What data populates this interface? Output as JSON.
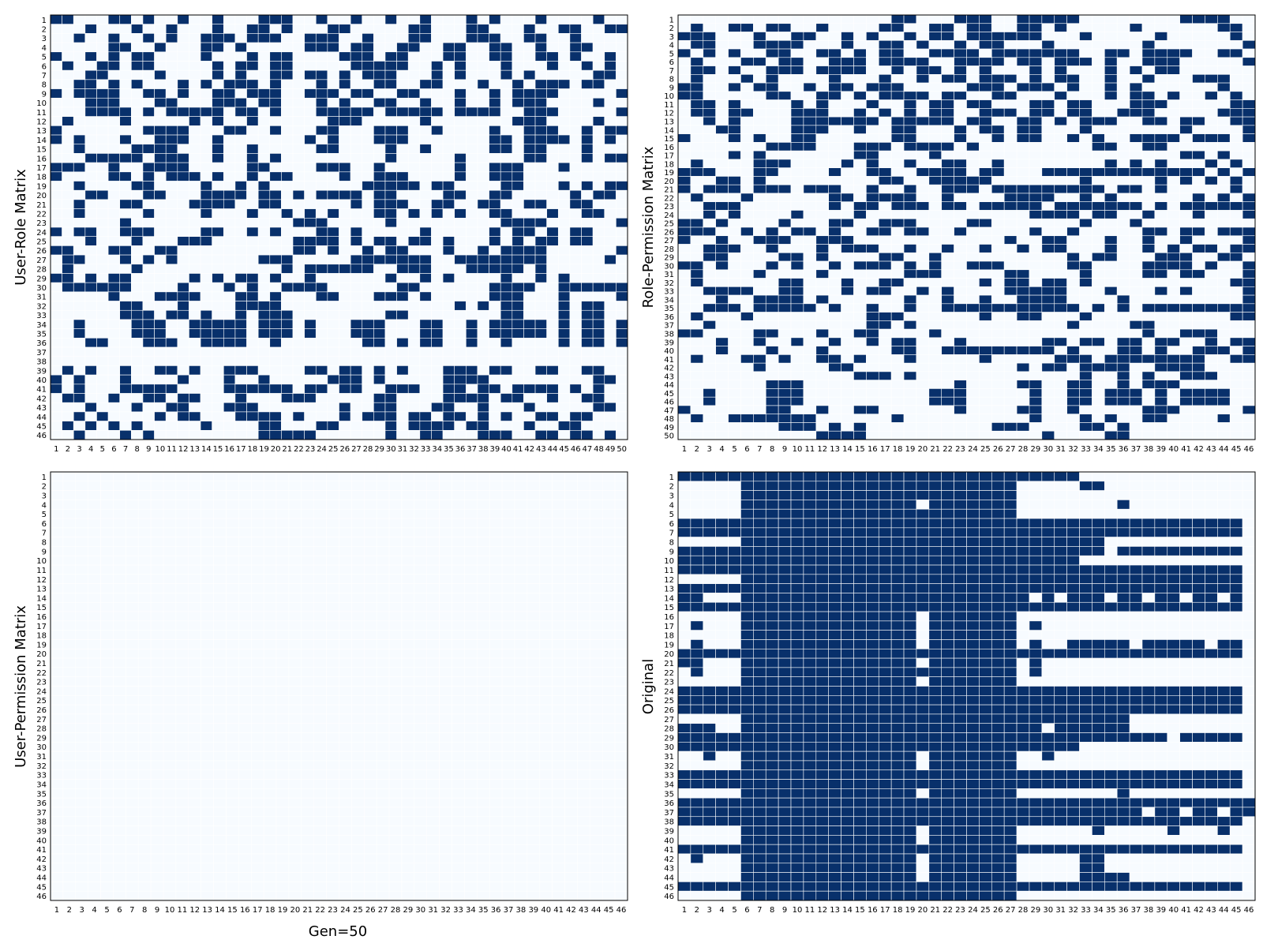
{
  "figure": {
    "footer_label": "Gen=50"
  },
  "colors": {
    "filled": "#08306b",
    "empty": "#f7fbff",
    "grid": "#ffffff",
    "frame": "#000000"
  },
  "chart_data": [
    {
      "type": "heatmap",
      "ylabel": "User-Role Matrix",
      "rows": 46,
      "cols": 50,
      "yticks": [
        "1",
        "2",
        "3",
        "4",
        "5",
        "6",
        "7",
        "8",
        "9",
        "10",
        "11",
        "12",
        "13",
        "14",
        "15",
        "16",
        "17",
        "18",
        "19",
        "20",
        "21",
        "22",
        "23",
        "24",
        "25",
        "26",
        "27",
        "28",
        "29",
        "30",
        "31",
        "32",
        "33",
        "34",
        "35",
        "36",
        "37",
        "38",
        "39",
        "40",
        "41",
        "42",
        "43",
        "44",
        "45",
        "46"
      ],
      "xticks": [
        "1",
        "2",
        "3",
        "4",
        "5",
        "6",
        "7",
        "8",
        "9",
        "10",
        "11",
        "12",
        "13",
        "14",
        "15",
        "16",
        "17",
        "18",
        "19",
        "20",
        "21",
        "22",
        "23",
        "24",
        "25",
        "26",
        "27",
        "28",
        "29",
        "30",
        "31",
        "32",
        "33",
        "34",
        "35",
        "36",
        "37",
        "38",
        "39",
        "40",
        "41",
        "42",
        "43",
        "44",
        "45",
        "46",
        "47",
        "48",
        "49",
        "50"
      ],
      "cells": [
        "11000110100100100011100100100100100010100010000100",
        "00010001001000100110100011000001100011000100110011",
        "00100100101001110111001110010001100011100110010000",
        "00000110010001101000001110110011001100110010011000",
        "10010101100001000101100001110110001100110011010010",
        "01001101100000101101100000111110010100010001001010",
        "00011000010000101001101101011100010100010100000110",
        "00110101000101011101000101001100110001001011101100",
        "10111100110100110111001110110011000100101111000001",
        "00011100011000111011000101001100100100101110000100",
        "00011110101111101101000111110111110111100111000001",
        "01000010000010100100000011100000100000001110000100",
        "10000000111100011001000110001110010000100111001011",
        "10100010011100100000001010001110000000110111101010",
        "00100001111000100100000110000100100000110110001000",
        "00011111011100100101000000000100000100000110001011",
        "11100100111100000110000111001000000100111000100000",
        "10000110101110100101100001001110000100111000000000",
        "00100001100001001010000000011111011000011000101011",
        "00011000110001111011010111101100001100110000010110",
        "00100011000011110011000000101110011001100110011000",
        "00100000100001000100101010001101010100110001001100",
        "00000010000000000000011100000100000000011110000001",
        "10110011100001100101000110100000100000101101011000",
        "00010001000111000000011110101101101000101011011000",
        "11000110011000000000011010010110001001011110000001",
        "01100010101000000011100000111111100111111110000010",
        "01000001000000000000101111110011100011111010000000",
        "11010110000010101101001000000100101000010010100000",
        "01111110000100010100111100000011000000111100111111",
        "00000100011110001101000110001110100000111000100001",
        "00000011000100001111000000000000000101011000101100",
        "00000011101101001011100000000110000000011000101100",
        "00100001110011111011101000111000110010111110101101",
        "00100001110011111011101000111000110010111110101101",
        "00011000111001111001000000011010110010010000101101",
        "00000000000000000000000000000000000000000000000000",
        "00000000000000000000000000000000000000000000000000",
        "01010010011010011100001101101010001110110011001100",
        "10100010000100010010000011101000001111000000000110",
        "10100011111000011111101101100111001101101111010100",
        "01100100110110001000111000001100001111011001001100",
        "00010001001100011100000001001100011001000100000110",
        "00101000010110001111010001011101101101010011011000",
        "01010101000001000011000110000101111011000100110000",
        "00100010100000000011111000000100110001110011011010"
      ]
    },
    {
      "type": "heatmap",
      "ylabel": "Role-Permission Matrix",
      "rows": 50,
      "cols": 46,
      "yticks": [
        "1",
        "2",
        "3",
        "4",
        "5",
        "6",
        "7",
        "8",
        "9",
        "10",
        "11",
        "12",
        "13",
        "14",
        "15",
        "16",
        "17",
        "18",
        "19",
        "20",
        "21",
        "22",
        "23",
        "24",
        "25",
        "26",
        "27",
        "28",
        "29",
        "30",
        "31",
        "32",
        "33",
        "34",
        "35",
        "36",
        "37",
        "38",
        "39",
        "40",
        "41",
        "42",
        "43",
        "44",
        "45",
        "46",
        "47",
        "48",
        "49",
        "50"
      ],
      "xticks": [
        "1",
        "2",
        "3",
        "4",
        "5",
        "6",
        "7",
        "8",
        "9",
        "10",
        "11",
        "12",
        "13",
        "14",
        "15",
        "16",
        "17",
        "18",
        "19",
        "20",
        "21",
        "22",
        "23",
        "24",
        "25",
        "26",
        "27",
        "28",
        "29",
        "30",
        "31",
        "32",
        "33",
        "34",
        "35",
        "36",
        "37",
        "38",
        "39",
        "40",
        "41",
        "42",
        "43",
        "44",
        "45",
        "46"
      ],
      "cells": [
        "0000000000000000011000111001111100000000111100",
        "0100110110010000110011011001101000001000000110",
        "1110001001100101001011011111100010000010000010",
        "0110001111000100110100101100010000000100000001",
        "1010100110011010110011110111111100110111100110",
        "0100011011001110111100111101101110100111000001",
        "0110100111011110010110101000101000101011000000",
        "0100010100001000100101101110101100100100011100",
        "1100101100101101110000011101110100101000000100",
        "1100000110011010111101100110001000101101001010",
        "0110100001010001001011011000110110001110000011",
        "0110110001110010101011001110110110011100000111",
        "0010100001111111011111011001101011100110110011",
        "0001100001110010011000101101100010000000100001",
        "1000101001100000011000100101100101001111011101",
        "0000000111100011101111010000000001100110000000",
        "0000101000000011000010000000000000000000110100",
        "0100001110000101001001100100000000101010001010",
        "1110001100001001100111101100011111111111110101",
        "1001101000000000110011111000000010000010101010",
        "1011101110111001001001110111111111011010000010",
        "0100010000001101111001000011110010100000010101",
        "0011100000001011011101101111101111111010111111",
        "0010100001000010000000000000111101100100010001",
        "1101000010001100111000011000000010001000000000",
        "1110010101101001101100100000100100000110110111",
        "1001001110011100000000000010011000100100100001",
        "0011100100010111001001001001011000100101011011",
        "0011000011010000110010000000000101100011100110",
        "1101000101001011101010011100000110000111101001",
        "0100001000010000001110000011000010000110110001",
        "0100000011000100110000001011011010000000000011",
        "0011110011000101100101000011111000100010100001",
        "0001001111010000001001001001111000010000000001",
        "0011101111101001001001111111111101010111111111",
        "0100010000000001110000001001100010000000000011",
        "0010000000000001101000000000000100001100000000",
        "1100001100010011000010000000000000000100111000",
        "0001001001001001011000100000011011011011001011",
        "0001000100010000011001111111110100011010011101",
        "0100011010011010001000001000001110111111110011",
        "0000001000001100000000000001011011110011110000",
        "0000000000000011101000000000000010010100111000",
        "0000000111000000000000100001100110010111000000",
        "0010000111000000000011100000100110111010111100",
        "0010000111000000000011100000100110111010111100",
        "1000000110010011000000100001100100000111000001",
        "0100111111100000010000000000100010100110000100",
        "0000000011101010000000000111000011010000000000",
        "0000000000011110000000000000010000110000000000"
      ]
    },
    {
      "type": "heatmap",
      "ylabel": "User-Permission Matrix",
      "xlabel": "Gen=50",
      "rows": 46,
      "cols": 46,
      "yticks": [
        "1",
        "2",
        "3",
        "4",
        "5",
        "6",
        "7",
        "8",
        "9",
        "10",
        "11",
        "12",
        "13",
        "14",
        "15",
        "16",
        "17",
        "18",
        "19",
        "20",
        "21",
        "22",
        "23",
        "24",
        "25",
        "26",
        "27",
        "28",
        "29",
        "30",
        "31",
        "32",
        "33",
        "34",
        "35",
        "36",
        "37",
        "38",
        "39",
        "40",
        "41",
        "42",
        "43",
        "44",
        "45",
        "46"
      ],
      "xticks": [
        "1",
        "2",
        "3",
        "4",
        "5",
        "6",
        "7",
        "8",
        "9",
        "10",
        "11",
        "12",
        "13",
        "14",
        "15",
        "16",
        "17",
        "18",
        "19",
        "20",
        "21",
        "22",
        "23",
        "24",
        "25",
        "26",
        "27",
        "28",
        "29",
        "30",
        "31",
        "32",
        "33",
        "34",
        "35",
        "36",
        "37",
        "38",
        "39",
        "40",
        "41",
        "42",
        "43",
        "44",
        "45",
        "46"
      ],
      "cells": "all-zero"
    },
    {
      "type": "heatmap",
      "ylabel": "Original",
      "rows": 46,
      "cols": 46,
      "yticks": [
        "1",
        "2",
        "3",
        "4",
        "5",
        "6",
        "7",
        "8",
        "9",
        "10",
        "11",
        "12",
        "13",
        "14",
        "15",
        "16",
        "17",
        "18",
        "19",
        "20",
        "21",
        "22",
        "23",
        "24",
        "25",
        "26",
        "27",
        "28",
        "29",
        "30",
        "31",
        "32",
        "33",
        "34",
        "35",
        "36",
        "37",
        "38",
        "39",
        "40",
        "41",
        "42",
        "43",
        "44",
        "45",
        "46"
      ],
      "xticks": [
        "1",
        "2",
        "3",
        "4",
        "5",
        "6",
        "7",
        "8",
        "9",
        "10",
        "11",
        "12",
        "13",
        "14",
        "15",
        "16",
        "17",
        "18",
        "19",
        "20",
        "21",
        "22",
        "23",
        "24",
        "25",
        "26",
        "27",
        "28",
        "29",
        "30",
        "31",
        "32",
        "33",
        "34",
        "35",
        "36",
        "37",
        "38",
        "39",
        "40",
        "41",
        "42",
        "43",
        "44",
        "45",
        "46"
      ],
      "cells": [
        "1111111111111111111111111111111100000000000000",
        "0000011111111111111111111110000011000000000000",
        "0000011111111111111111111110000000000000000000",
        "0000011111111111111011111110000000010000000000",
        "0000011111111111111111111110000000000000000000",
        "1111111111111111111111111111111111111111111110",
        "1111111111111111111111111111111111111111111110",
        "0000011111111111111111111111111111000000000000",
        "1111111111111111111111111111111111011111111110",
        "1111111111111111111111111111111100000000000000",
        "1111111111111111111111111111111111111111111110",
        "0000011111111111111111111111111111111111111110",
        "1111111111111111111111111111111111111111111110",
        "1100011111111111111111111111010111011011011010",
        "1111111111111111111111111111111111111111111110",
        "0000011111111111111011111110000000000000000000",
        "0100011111111111111011111110100000000000000000",
        "0000011111111111111011111110000000000000000000",
        "0100011111111111111011111110100111110111110110",
        "1111111111111111111111111111111111111111111110",
        "1100011111111111111011111110100000000000000000",
        "0100011111111111111111111110100000000000000000",
        "0000011111111111111011111110000000000000000000",
        "1111111111111111111111111111111111111111111110",
        "1111111111111111111111111111111111111111111110",
        "1111111111111111111111111111111111111111111110",
        "0000011111111111111111111111111111110000000000",
        "1110011111111111111111111111101111110000000000",
        "1111111111111111111111111111111111111110111110",
        "1111111111111111111111111111111100000000000000",
        "0010011111111111111011111110010000000000000000",
        "0000011111111111111011111110000000000000000000",
        "1111111111111111111111111111111111111111111110",
        "1111111111111111111111111111111111111111111110",
        "0000011111111111111011111110000000010000000000",
        "1111111111111111111111111111111111111111111111",
        "1111111111111111111111111111111111111011011011",
        "1111111111111111111111111111111111111111111110",
        "0000011111111111111011111110000001000001000100",
        "0000011111111111111011111110000000000000000000",
        "1111111111111111111111111111111111111111111110",
        "0100011111111111111011111110000011000000000000",
        "0000011111111111111011111110000011000000000000",
        "0000011111111111111011111110000011110000000000",
        "1111111111111111111111111111111111111111111110",
        "0000011111111111111111111110000000000000000000"
      ]
    }
  ]
}
